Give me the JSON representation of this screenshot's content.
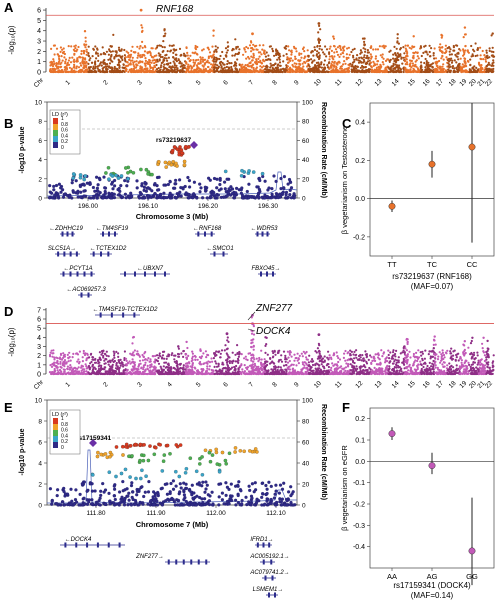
{
  "panel_labels": {
    "a": "A",
    "b": "B",
    "c": "C",
    "d": "D",
    "e": "E",
    "f": "F"
  },
  "colors": {
    "orange_dark": "#a34c16",
    "orange_light": "#e8722b",
    "magenta_dark": "#8e2e86",
    "magenta_light": "#c25ab8",
    "sigline": "#d9534f",
    "gene": "#2b2b8c",
    "ld_lead": "#6a2fa6",
    "ld0": "#2f2a86",
    "ld02": "#3aa5c9",
    "ld04": "#4caf50",
    "ld06": "#f0a32a",
    "ld08": "#d93a1f",
    "point_orange": "#e8722b",
    "point_magenta": "#c25ab8"
  },
  "manhattan_a": {
    "ylabel": "-log₁₀(p)",
    "yticks": [
      "0",
      "1",
      "2",
      "3",
      "4",
      "5",
      "6"
    ],
    "xchroms": [
      "Chr",
      "1",
      "2",
      "3",
      "4",
      "5",
      "6",
      "7",
      "8",
      "9",
      "10",
      "11",
      "12",
      "13",
      "14",
      "15",
      "16",
      "17",
      "18",
      "19",
      "20",
      "21",
      "22"
    ],
    "top_hit_label": "RNF168",
    "top_hit": {
      "chrom": 3,
      "y": 6.0
    },
    "sig_threshold": 5.5
  },
  "regional_b": {
    "ylabel": "-log10 p-value",
    "y2label": "Recombination Rate (cM/Mb)",
    "xlabel": "Chromosome 3 (Mb)",
    "xticks": [
      "196.00",
      "196.10",
      "196.20",
      "196.30"
    ],
    "yticks": [
      "0",
      "2",
      "4",
      "6",
      "8",
      "10"
    ],
    "y2ticks": [
      "0",
      "20",
      "40",
      "60",
      "80",
      "100"
    ],
    "lead_label": "rs73219637",
    "ld_title": "LD (r²)",
    "ld_levels": [
      "1",
      "0.8",
      "0.6",
      "0.4",
      "0.2",
      "0"
    ],
    "genes": [
      {
        "label": "←ZDHHC19"
      },
      {
        "label": "←TM4SF19"
      },
      {
        "label": "←RNF168"
      },
      {
        "label": "←WDR53"
      },
      {
        "label": "SLC51A→"
      },
      {
        "label": "←TCTEX1D2"
      },
      {
        "label": "←SMCO1"
      },
      {
        "label": "←PCYT1A"
      },
      {
        "label": "←UBXN7"
      },
      {
        "label": "FBXO45→"
      },
      {
        "label": "←AC069257.3"
      },
      {
        "label": "←TM4SF19-TCTEX1D2"
      }
    ]
  },
  "effect_c": {
    "ylabel": "β vegetarianism on Testosterone",
    "xlabel1": "rs73219637 (RNF168)",
    "xlabel2": "(MAF=0.07)",
    "yticks": [
      "-0.2",
      "0.0",
      "0.2",
      "0.4"
    ]
  },
  "manhattan_d": {
    "ylabel": "-log₁₀(p)",
    "yticks": [
      "0",
      "1",
      "2",
      "3",
      "4",
      "5",
      "6",
      "7"
    ],
    "xchroms": [
      "Chr",
      "1",
      "2",
      "3",
      "4",
      "5",
      "6",
      "7",
      "8",
      "9",
      "10",
      "11",
      "12",
      "13",
      "14",
      "15",
      "16",
      "17",
      "18",
      "19",
      "20",
      "21",
      "22"
    ],
    "hit1_label": "ZNF277",
    "hit2_label": "DOCK4",
    "sig_threshold": 5.5
  },
  "regional_e": {
    "ylabel": "-log10 p-value",
    "y2label": "Recombination Rate (cM/Mb)",
    "xlabel": "Chromosome 7 (Mb)",
    "xticks": [
      "111.80",
      "111.90",
      "112.00",
      "112.10"
    ],
    "yticks": [
      "0",
      "2",
      "4",
      "6",
      "8",
      "10"
    ],
    "y2ticks": [
      "0",
      "20",
      "40",
      "60",
      "80",
      "100"
    ],
    "lead_label": "rs17159341",
    "ld_title": "LD (r²)",
    "ld_levels": [
      "1",
      "0.8",
      "0.6",
      "0.4",
      "0.2",
      "0"
    ],
    "genes": [
      {
        "label": "←DOCK4"
      },
      {
        "label": "IFRD1→"
      },
      {
        "label": "ZNF277→"
      },
      {
        "label": "AC005192.1→"
      },
      {
        "label": "AC079741.2→"
      },
      {
        "label": "LSMEM1→"
      }
    ]
  },
  "effect_f": {
    "ylabel": "β vegetarianism on eGFR",
    "xlabel1": "rs17159341 (DOCK4)",
    "xlabel2": "(MAF=0.14)",
    "yticks": [
      "-0.4",
      "-0.3",
      "-0.2",
      "-0.1",
      "0.0",
      "0.1",
      "0.2"
    ]
  },
  "chart_data": [
    {
      "type": "scatter",
      "panel": "C",
      "title": "",
      "categories": [
        "TT",
        "TC",
        "CC"
      ],
      "values": [
        -0.04,
        0.18,
        0.27
      ],
      "ci_low": [
        -0.07,
        0.11,
        -0.23
      ],
      "ci_high": [
        -0.01,
        0.25,
        0.5
      ],
      "ylabel": "β vegetarianism on Testosterone",
      "xlabel": "rs73219637 (RNF168)",
      "ylim": [
        -0.3,
        0.5
      ]
    },
    {
      "type": "scatter",
      "panel": "F",
      "title": "",
      "categories": [
        "AA",
        "AG",
        "GG"
      ],
      "values": [
        0.13,
        -0.02,
        -0.42
      ],
      "ci_low": [
        0.1,
        -0.06,
        -0.58
      ],
      "ci_high": [
        0.16,
        0.04,
        -0.17
      ],
      "ylabel": "β vegetarianism on eGFR",
      "xlabel": "rs17159341 (DOCK4)",
      "ylim": [
        -0.5,
        0.25
      ]
    }
  ]
}
